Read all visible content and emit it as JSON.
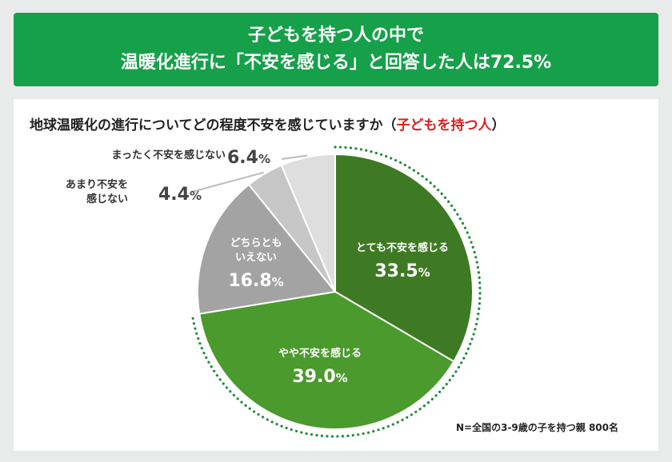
{
  "header": {
    "line1": "子どもを持つ人の中で",
    "line2": "温暖化進行に「不安を感じる」と回答した人は72.5%"
  },
  "question": {
    "text": "地球温暖化の進行についてどの程度不安を感じていますか（",
    "highlight": "子どもを持つ人",
    "close": "）"
  },
  "colors": {
    "banner": "#16a04a",
    "highlight": "#d9201c",
    "dotted_ring": "#1e8c3c"
  },
  "chart_data": {
    "type": "pie",
    "unit": "%",
    "slices": [
      {
        "label": "とても不安を感じる",
        "value": 33.5,
        "color": "#3e7a23"
      },
      {
        "label": "やや不安を感じる",
        "value": 39.0,
        "color": "#4b9a2d"
      },
      {
        "label": "どちらとも\nいえない",
        "value": 16.8,
        "color": "#a3a3a3"
      },
      {
        "label": "あまり不安を\n感じない",
        "value": 4.4,
        "color": "#c6c6c6"
      },
      {
        "label": "まったく不安を感じない",
        "value": 6.4,
        "color": "#dedede"
      }
    ]
  },
  "footnote": "N=全国の3-9歳の子を持つ親 800名"
}
